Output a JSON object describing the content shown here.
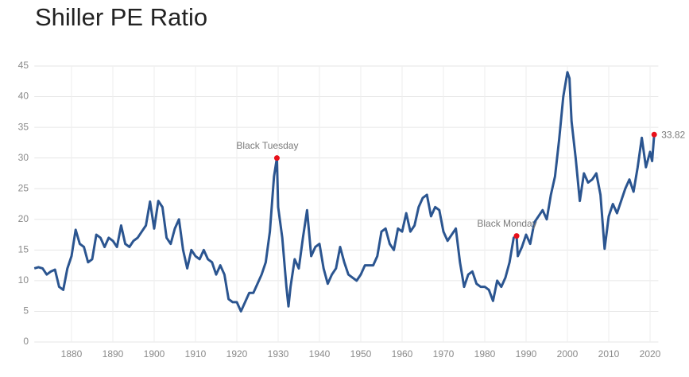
{
  "chart_data": {
    "type": "line",
    "title": "Shiller PE Ratio",
    "x": [
      1871,
      1872,
      1873,
      1874,
      1875,
      1876,
      1877,
      1878,
      1879,
      1880,
      1881,
      1882,
      1883,
      1884,
      1885,
      1886,
      1887,
      1888,
      1889,
      1890,
      1891,
      1892,
      1893,
      1894,
      1895,
      1896,
      1897,
      1898,
      1899,
      1900,
      1901,
      1902,
      1903,
      1904,
      1905,
      1906,
      1907,
      1908,
      1909,
      1910,
      1911,
      1912,
      1913,
      1914,
      1915,
      1916,
      1917,
      1918,
      1919,
      1920,
      1921,
      1922,
      1923,
      1924,
      1925,
      1926,
      1927,
      1928,
      1929,
      1929.7,
      1930,
      1931,
      1932,
      1932.5,
      1933,
      1934,
      1935,
      1936,
      1937,
      1938,
      1939,
      1940,
      1941,
      1942,
      1943,
      1944,
      1945,
      1946,
      1947,
      1948,
      1949,
      1950,
      1951,
      1952,
      1953,
      1954,
      1955,
      1956,
      1957,
      1958,
      1959,
      1960,
      1961,
      1962,
      1963,
      1964,
      1965,
      1966,
      1967,
      1968,
      1969,
      1970,
      1971,
      1972,
      1973,
      1974,
      1975,
      1976,
      1977,
      1978,
      1979,
      1980,
      1981,
      1982,
      1983,
      1984,
      1985,
      1986,
      1987,
      1987.7,
      1988,
      1989,
      1990,
      1991,
      1992,
      1993,
      1994,
      1995,
      1996,
      1997,
      1998,
      1999,
      2000,
      2000.5,
      2001,
      2002,
      2003,
      2004,
      2005,
      2006,
      2007,
      2008,
      2009,
      2010,
      2011,
      2012,
      2013,
      2014,
      2015,
      2016,
      2017,
      2018,
      2019,
      2020,
      2020.5,
      2021
    ],
    "values": [
      12,
      12.2,
      12,
      11,
      11.5,
      11.8,
      9,
      8.5,
      12,
      14,
      18.3,
      16,
      15.5,
      13,
      13.5,
      17.5,
      17,
      15.5,
      17,
      16.5,
      15.5,
      19,
      16,
      15.5,
      16.5,
      17,
      18,
      19,
      22.9,
      18.5,
      23,
      22,
      17,
      16,
      18.5,
      20,
      15,
      12,
      15,
      14,
      13.5,
      15,
      13.5,
      13,
      11,
      12.5,
      11,
      7,
      6.5,
      6.5,
      5,
      6.5,
      8,
      8,
      9.5,
      11,
      13,
      18,
      27,
      30,
      22,
      17,
      9,
      5.8,
      9,
      13.5,
      12,
      17,
      21.5,
      14,
      15.5,
      16,
      12,
      9.5,
      11,
      12,
      15.5,
      13,
      11,
      10.5,
      10,
      11,
      12.5,
      12.5,
      12.5,
      14,
      18,
      18.5,
      16,
      15,
      18.5,
      18,
      21,
      18,
      19,
      22,
      23.5,
      24,
      20.5,
      22,
      21.5,
      18,
      16.5,
      17.5,
      18.5,
      13,
      9,
      11,
      11.5,
      9.5,
      9,
      9,
      8.5,
      6.7,
      10,
      9,
      10.5,
      13,
      17,
      17.3,
      14,
      15.5,
      17.5,
      16,
      19.5,
      20.5,
      21.5,
      20,
      24,
      27,
      33,
      40,
      44,
      43,
      36,
      30,
      23,
      27.5,
      26,
      26.5,
      27.5,
      24,
      15.2,
      20.5,
      22.5,
      21,
      23,
      25,
      26.5,
      24.5,
      28.5,
      33.3,
      28.5,
      31,
      29.5,
      33.82
    ],
    "color": "#2b5590",
    "xlim": [
      1871,
      2022
    ],
    "ylim": [
      0,
      45
    ],
    "xticks": [
      1880,
      1890,
      1900,
      1910,
      1920,
      1930,
      1940,
      1950,
      1960,
      1970,
      1980,
      1990,
      2000,
      2010,
      2020
    ],
    "yticks": [
      0,
      5,
      10,
      15,
      20,
      25,
      30,
      35,
      40,
      45
    ],
    "grid": true,
    "annotations": [
      {
        "x": 1929.7,
        "y": 30,
        "label": "Black Tuesday"
      },
      {
        "x": 1987.7,
        "y": 17.3,
        "label": "Black Monday"
      },
      {
        "x": 2021,
        "y": 33.82
      }
    ],
    "annotation_color": "#e8101a"
  }
}
